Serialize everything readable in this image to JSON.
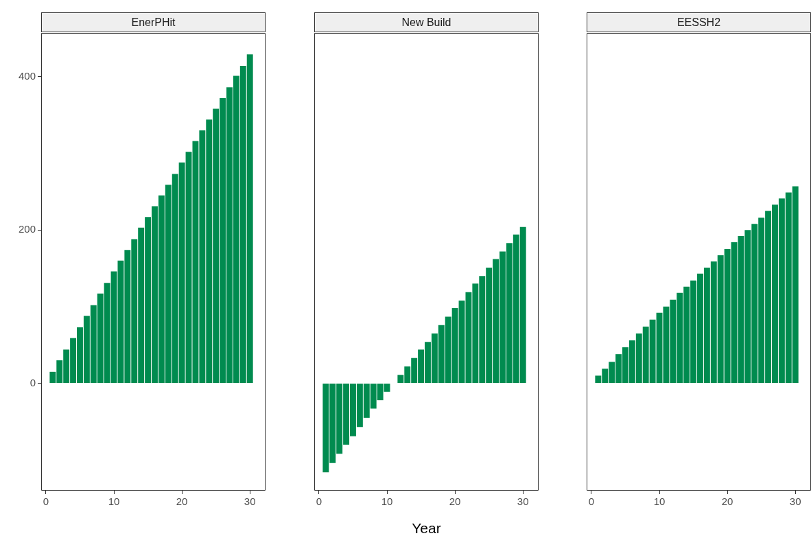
{
  "chart_data": [
    {
      "type": "bar",
      "title": "EnerPHit",
      "x": [
        1,
        2,
        3,
        4,
        5,
        6,
        7,
        8,
        9,
        10,
        11,
        12,
        13,
        14,
        15,
        16,
        17,
        18,
        19,
        20,
        21,
        22,
        23,
        24,
        25,
        26,
        27,
        28,
        29,
        30
      ],
      "color": "#008b4f",
      "values": [
        15,
        30,
        44,
        59,
        73,
        88,
        102,
        117,
        131,
        146,
        160,
        174,
        188,
        203,
        217,
        231,
        245,
        259,
        273,
        288,
        302,
        316,
        330,
        344,
        358,
        372,
        386,
        401,
        414,
        429
      ],
      "xlim": [
        -0.7,
        32.3
      ],
      "xticks": [
        0,
        10,
        20,
        30
      ],
      "ylim": [
        -140,
        457
      ],
      "yticks": [
        0,
        200,
        400
      ]
    },
    {
      "type": "bar",
      "title": "New Build",
      "xlabel": "Year",
      "x": [
        1,
        2,
        3,
        4,
        5,
        6,
        7,
        8,
        9,
        10,
        11,
        12,
        13,
        14,
        15,
        16,
        17,
        18,
        19,
        20,
        21,
        22,
        23,
        24,
        25,
        26,
        27,
        28,
        29,
        30
      ],
      "color": "#008b4f",
      "values": [
        -116,
        -104,
        -92,
        -80,
        -69,
        -57,
        -45,
        -33,
        -22,
        -11,
        0,
        11,
        22,
        33,
        44,
        54,
        65,
        76,
        87,
        98,
        108,
        119,
        130,
        140,
        151,
        162,
        172,
        183,
        194,
        204
      ],
      "xlim": [
        -0.7,
        32.3
      ],
      "xticks": [
        0,
        10,
        20,
        30
      ],
      "ylim": [
        -140,
        457
      ],
      "yticks": [
        0,
        200,
        400
      ],
      "tick_labels": "x"
    },
    {
      "type": "bar",
      "title": "EESSH2",
      "x": [
        1,
        2,
        3,
        4,
        5,
        6,
        7,
        8,
        9,
        10,
        11,
        12,
        13,
        14,
        15,
        16,
        17,
        18,
        19,
        20,
        21,
        22,
        23,
        24,
        25,
        26,
        27,
        28,
        29,
        30
      ],
      "color": "#008b4f",
      "values": [
        10,
        19,
        28,
        38,
        47,
        56,
        65,
        74,
        83,
        92,
        100,
        109,
        118,
        126,
        134,
        143,
        151,
        159,
        167,
        175,
        184,
        192,
        200,
        208,
        216,
        225,
        233,
        241,
        249,
        257
      ],
      "xlim": [
        -0.7,
        32.3
      ],
      "xticks": [
        0,
        10,
        20,
        30
      ],
      "ylim": [
        -140,
        457
      ],
      "yticks": [
        0,
        200,
        400
      ],
      "tick_labels": "x"
    }
  ]
}
